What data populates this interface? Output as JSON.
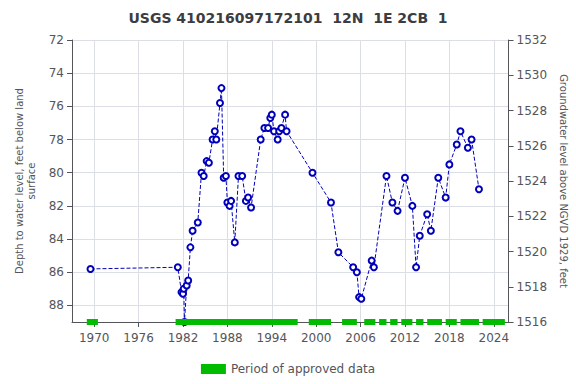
{
  "chart_data": {
    "type": "line",
    "title": "USGS 410216097172101  12N  1E 2CB  1",
    "ylabel": "Depth to water level, feet below land\nsurface",
    "y2label": "Groundwater level above NGVD 1929, feet",
    "xlim": [
      1967,
      2026
    ],
    "xticks": [
      1970,
      1976,
      1982,
      1988,
      1994,
      2000,
      2006,
      2012,
      2018,
      2024
    ],
    "ylim": [
      89,
      72
    ],
    "yticks": [
      72,
      74,
      76,
      78,
      80,
      82,
      84,
      86,
      88
    ],
    "y2lim": [
      1516,
      1532
    ],
    "y2ticks": [
      1532,
      1530,
      1528,
      1526,
      1524,
      1522,
      1520,
      1518,
      1516
    ],
    "grid": true,
    "legend": "bottom",
    "series": [
      {
        "type": "line",
        "color": "#0000bb",
        "marker": "circle",
        "line_style": "dashed",
        "x": [
          1969.5,
          1981.3,
          1981.8,
          1982.0,
          1982.1,
          1982.2,
          1982.5,
          1982.7,
          1983.0,
          1983.3,
          1984.0,
          1984.5,
          1984.8,
          1985.2,
          1985.5,
          1986.0,
          1986.3,
          1986.5,
          1987.0,
          1987.2,
          1987.5,
          1987.8,
          1988.0,
          1988.3,
          1988.5,
          1989.0,
          1989.5,
          1990.0,
          1990.5,
          1990.8,
          1991.2,
          1992.5,
          1993.0,
          1993.5,
          1993.8,
          1994.0,
          1994.3,
          1994.8,
          1995.0,
          1995.3,
          1995.8,
          1996.0,
          1999.5,
          2002.0,
          2003.0,
          2005.0,
          2005.5,
          2005.8,
          2006.1,
          2007.5,
          2007.8,
          2009.5,
          2010.3,
          2011.0,
          2012.0,
          2013.0,
          2013.5,
          2014.0,
          2015.0,
          2015.5,
          2016.5,
          2017.5,
          2018.0,
          2019.0,
          2019.5,
          2020.5,
          2021.0,
          2022.0
        ],
        "values": [
          85.8,
          85.7,
          87.2,
          87.3,
          87.0,
          89.0,
          86.8,
          86.5,
          84.5,
          83.5,
          83.0,
          80.0,
          80.2,
          79.3,
          79.4,
          78.0,
          77.5,
          78.0,
          75.8,
          74.9,
          80.3,
          80.2,
          81.8,
          82.0,
          81.7,
          84.2,
          80.2,
          80.2,
          81.7,
          81.5,
          82.1,
          78.0,
          77.3,
          77.3,
          76.7,
          76.5,
          77.5,
          78.0,
          77.5,
          77.3,
          76.5,
          77.5,
          80.0,
          81.8,
          84.8,
          85.7,
          86.0,
          87.5,
          87.6,
          85.3,
          85.7,
          80.2,
          81.8,
          82.3,
          80.3,
          82.0,
          85.7,
          83.8,
          82.5,
          83.5,
          80.3,
          81.5,
          79.5,
          78.3,
          77.5,
          78.5,
          78.0,
          81.0
        ]
      },
      {
        "type": "range",
        "name": "Period of approved data",
        "color": "#00bb00",
        "ranges": [
          [
            1969.0,
            1970.5
          ],
          [
            1981.0,
            1997.5
          ],
          [
            1999.0,
            2002.0
          ],
          [
            2003.5,
            2005.5
          ],
          [
            2006.5,
            2008.0
          ],
          [
            2008.5,
            2009.5
          ],
          [
            2010.0,
            2011.0
          ],
          [
            2011.5,
            2013.0
          ],
          [
            2013.5,
            2014.5
          ],
          [
            2015.0,
            2017.0
          ],
          [
            2017.5,
            2019.0
          ],
          [
            2019.5,
            2022.0
          ],
          [
            2022.5,
            2025.5
          ]
        ]
      }
    ]
  }
}
